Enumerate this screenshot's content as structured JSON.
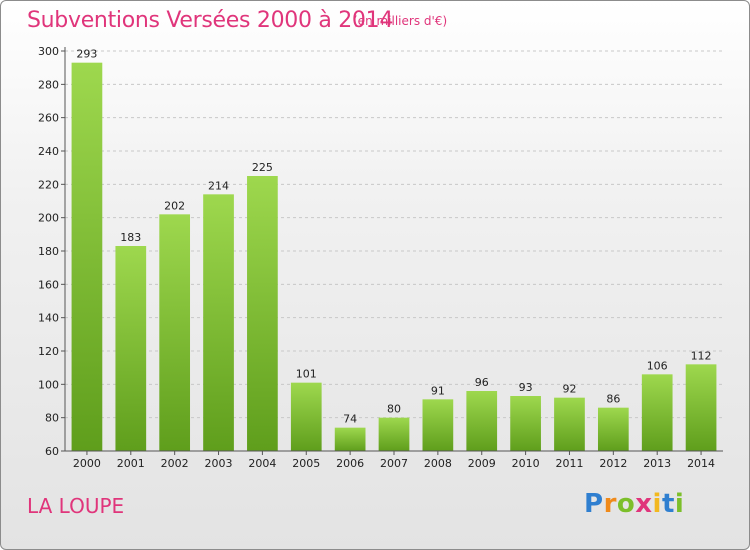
{
  "header": {
    "title": "Subventions Versées 2000 à 2014",
    "subtitle": "(en milliers d'€)"
  },
  "footer": {
    "commune": "LA LOUPE",
    "logo": "Proxiti"
  },
  "colors": {
    "title": "#e0357b",
    "bar_top": "#9ed84e",
    "bar_bottom": "#5f9e1c"
  },
  "chart_data": {
    "type": "bar",
    "title": "Subventions Versées 2000 à 2014",
    "subtitle": "(en milliers d'€)",
    "xlabel": "",
    "ylabel": "",
    "categories": [
      "2000",
      "2001",
      "2002",
      "2003",
      "2004",
      "2005",
      "2006",
      "2007",
      "2008",
      "2009",
      "2010",
      "2011",
      "2012",
      "2013",
      "2014"
    ],
    "values": [
      293,
      183,
      202,
      214,
      225,
      101,
      74,
      80,
      91,
      96,
      93,
      92,
      86,
      106,
      112
    ],
    "ylim": [
      60,
      300
    ],
    "yticks": [
      60,
      80,
      100,
      120,
      140,
      160,
      180,
      200,
      220,
      240,
      260,
      280,
      300
    ],
    "grid": true,
    "legend": "none"
  }
}
